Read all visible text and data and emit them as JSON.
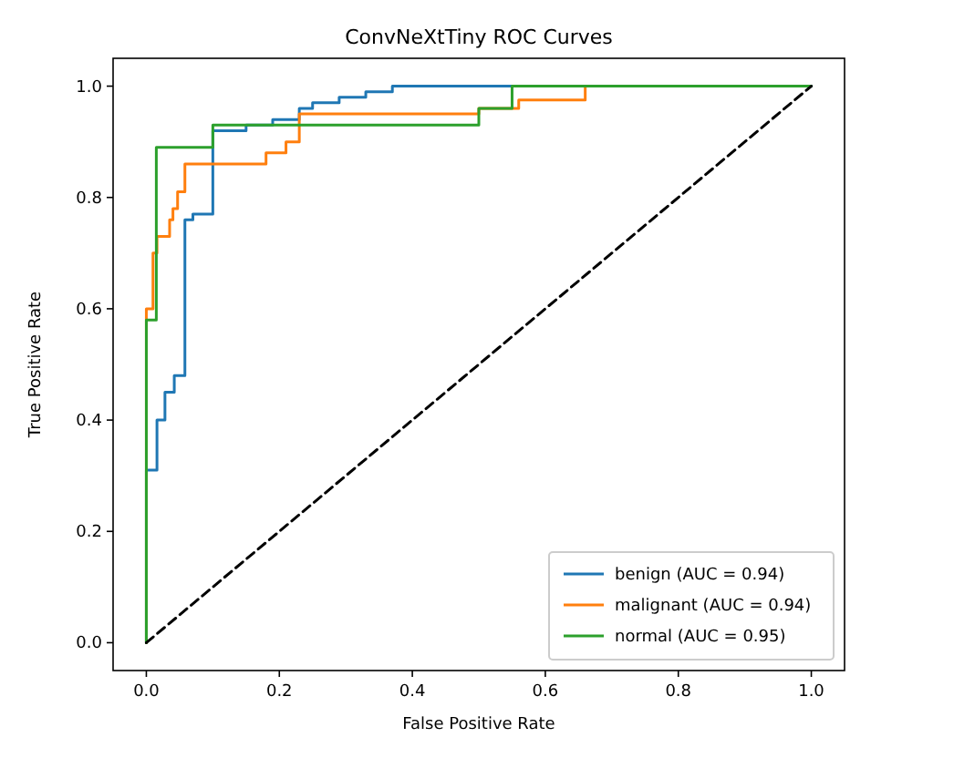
{
  "chart_data": {
    "type": "line",
    "title": "ConvNeXtTiny ROC Curves",
    "xlabel": "False Positive Rate",
    "ylabel": "True Positive Rate",
    "xlim": [
      -0.05,
      1.05
    ],
    "ylim": [
      -0.05,
      1.05
    ],
    "xticks": [
      {
        "value": 0,
        "label": "0.0"
      },
      {
        "value": 0.2,
        "label": "0.2"
      },
      {
        "value": 0.4,
        "label": "0.4"
      },
      {
        "value": 0.6,
        "label": "0.6"
      },
      {
        "value": 0.8,
        "label": "0.8"
      },
      {
        "value": 1,
        "label": "1.0"
      }
    ],
    "yticks": [
      {
        "value": 0,
        "label": "0.0"
      },
      {
        "value": 0.2,
        "label": "0.2"
      },
      {
        "value": 0.4,
        "label": "0.4"
      },
      {
        "value": 0.6,
        "label": "0.6"
      },
      {
        "value": 0.8,
        "label": "0.8"
      },
      {
        "value": 1,
        "label": "1.0"
      }
    ],
    "grid": false,
    "legend": "bottom right",
    "marker": "none",
    "series": [
      {
        "name": "benign (AUC = 0.94)",
        "color": "#1f77b4",
        "x": [
          0,
          0,
          0.016,
          0.016,
          0.028,
          0.028,
          0.042,
          0.042,
          0.058,
          0.058,
          0.07,
          0.07,
          0.1,
          0.1,
          0.15,
          0.15,
          0.19,
          0.19,
          0.23,
          0.23,
          0.25,
          0.25,
          0.29,
          0.29,
          0.33,
          0.33,
          0.37,
          0.37,
          1
        ],
        "values": [
          0,
          0.31,
          0.31,
          0.4,
          0.4,
          0.45,
          0.45,
          0.48,
          0.48,
          0.76,
          0.76,
          0.77,
          0.77,
          0.92,
          0.92,
          0.93,
          0.93,
          0.94,
          0.94,
          0.96,
          0.96,
          0.97,
          0.97,
          0.98,
          0.98,
          0.99,
          0.99,
          1,
          1
        ]
      },
      {
        "name": "malignant (AUC = 0.94)",
        "color": "#ff7f0e",
        "x": [
          0,
          0,
          0.01,
          0.01,
          0.016,
          0.016,
          0.035,
          0.035,
          0.04,
          0.04,
          0.047,
          0.047,
          0.058,
          0.058,
          0.18,
          0.18,
          0.21,
          0.21,
          0.23,
          0.23,
          0.5,
          0.5,
          0.56,
          0.56,
          0.66,
          0.66
        ],
        "values": [
          0,
          0.6,
          0.6,
          0.7,
          0.7,
          0.73,
          0.73,
          0.76,
          0.76,
          0.78,
          0.78,
          0.81,
          0.81,
          0.86,
          0.86,
          0.88,
          0.88,
          0.9,
          0.9,
          0.95,
          0.95,
          0.96,
          0.96,
          0.975,
          0.975,
          1
        ]
      },
      {
        "name": "normal (AUC = 0.95)",
        "color": "#2ca02c",
        "x": [
          0,
          0,
          0.015,
          0.015,
          0.1,
          0.1,
          0.5,
          0.5,
          0.55,
          0.55,
          1
        ],
        "values": [
          0,
          0.58,
          0.58,
          0.89,
          0.89,
          0.93,
          0.93,
          0.96,
          0.96,
          1,
          1
        ]
      },
      {
        "color": "#000000",
        "line_style": "dashed",
        "x": [
          0,
          1
        ],
        "values": [
          0,
          1
        ]
      }
    ]
  }
}
